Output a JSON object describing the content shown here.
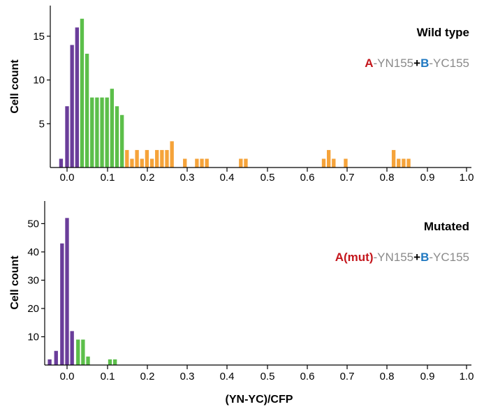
{
  "colors": {
    "low": "#6a3d9a",
    "mid": "#5cbf4a",
    "high": "#f5a33a",
    "accent_red": "#c4161c",
    "accent_blue": "#1f78c1",
    "label_gray": "#8a8a8a",
    "axis": "#000000"
  },
  "chart_data": [
    {
      "type": "bar",
      "title": "Wild type",
      "construct": [
        {
          "text": "A",
          "role": "red_bold"
        },
        {
          "text": "-YN155",
          "role": "gray"
        },
        {
          "text": "+",
          "role": "black_bold"
        },
        {
          "text": "B",
          "role": "blue_bold"
        },
        {
          "text": "-YC155",
          "role": "gray"
        }
      ],
      "xlabel": "",
      "ylabel": "Cell count",
      "xlim": [
        -0.05,
        1.0
      ],
      "ylim": [
        0,
        18.5
      ],
      "xticks": [
        "0.0",
        "0.1",
        "0.2",
        "0.3",
        "0.4",
        "0.5",
        "0.6",
        "0.7",
        "0.8",
        "0.9",
        "1.0"
      ],
      "yticks": [
        "5",
        "10",
        "15"
      ],
      "bin_width": 0.0125,
      "bins": [
        {
          "x": -0.015,
          "y": 1,
          "group": "low"
        },
        {
          "x": 0.0,
          "y": 7,
          "group": "low"
        },
        {
          "x": 0.0125,
          "y": 14,
          "group": "low"
        },
        {
          "x": 0.025,
          "y": 16,
          "group": "low"
        },
        {
          "x": 0.0375,
          "y": 17,
          "group": "mid"
        },
        {
          "x": 0.05,
          "y": 13,
          "group": "mid"
        },
        {
          "x": 0.0625,
          "y": 8,
          "group": "mid"
        },
        {
          "x": 0.075,
          "y": 8,
          "group": "mid"
        },
        {
          "x": 0.0875,
          "y": 8,
          "group": "mid"
        },
        {
          "x": 0.1,
          "y": 8,
          "group": "mid"
        },
        {
          "x": 0.1125,
          "y": 9,
          "group": "mid"
        },
        {
          "x": 0.125,
          "y": 7,
          "group": "mid"
        },
        {
          "x": 0.1375,
          "y": 6,
          "group": "mid"
        },
        {
          "x": 0.15,
          "y": 2,
          "group": "high"
        },
        {
          "x": 0.1625,
          "y": 1,
          "group": "high"
        },
        {
          "x": 0.175,
          "y": 2,
          "group": "high"
        },
        {
          "x": 0.1875,
          "y": 1,
          "group": "high"
        },
        {
          "x": 0.2,
          "y": 2,
          "group": "high"
        },
        {
          "x": 0.2125,
          "y": 1,
          "group": "high"
        },
        {
          "x": 0.225,
          "y": 2,
          "group": "high"
        },
        {
          "x": 0.2375,
          "y": 2,
          "group": "high"
        },
        {
          "x": 0.25,
          "y": 2,
          "group": "high"
        },
        {
          "x": 0.2625,
          "y": 3,
          "group": "high"
        },
        {
          "x": 0.295,
          "y": 1,
          "group": "high"
        },
        {
          "x": 0.325,
          "y": 1,
          "group": "high"
        },
        {
          "x": 0.3375,
          "y": 1,
          "group": "high"
        },
        {
          "x": 0.35,
          "y": 1,
          "group": "high"
        },
        {
          "x": 0.435,
          "y": 1,
          "group": "high"
        },
        {
          "x": 0.4475,
          "y": 1,
          "group": "high"
        },
        {
          "x": 0.6425,
          "y": 1,
          "group": "high"
        },
        {
          "x": 0.655,
          "y": 2,
          "group": "high"
        },
        {
          "x": 0.6675,
          "y": 1,
          "group": "high"
        },
        {
          "x": 0.6975,
          "y": 1,
          "group": "high"
        },
        {
          "x": 0.8175,
          "y": 2,
          "group": "high"
        },
        {
          "x": 0.83,
          "y": 1,
          "group": "high"
        },
        {
          "x": 0.8425,
          "y": 1,
          "group": "high"
        },
        {
          "x": 0.855,
          "y": 1,
          "group": "high"
        }
      ]
    },
    {
      "type": "bar",
      "title": "Mutated",
      "construct": [
        {
          "text": "A(mut)",
          "role": "red_bold"
        },
        {
          "text": "-YN155",
          "role": "gray"
        },
        {
          "text": "+",
          "role": "black_bold"
        },
        {
          "text": "B",
          "role": "blue_bold"
        },
        {
          "text": "-YC155",
          "role": "gray"
        }
      ],
      "xlabel": "(YN-YC)/CFP",
      "ylabel": "Cell count",
      "xlim": [
        -0.05,
        1.0
      ],
      "ylim": [
        0,
        58
      ],
      "xticks": [
        "0.0",
        "0.1",
        "0.2",
        "0.3",
        "0.4",
        "0.5",
        "0.6",
        "0.7",
        "0.8",
        "0.9",
        "1.0"
      ],
      "yticks": [
        "10",
        "20",
        "30",
        "40",
        "50"
      ],
      "bin_width": 0.0125,
      "bins": [
        {
          "x": -0.0435,
          "y": 2,
          "group": "low"
        },
        {
          "x": -0.0275,
          "y": 5,
          "group": "low"
        },
        {
          "x": -0.0125,
          "y": 43,
          "group": "low"
        },
        {
          "x": 0.0,
          "y": 52,
          "group": "low"
        },
        {
          "x": 0.0125,
          "y": 12,
          "group": "low"
        },
        {
          "x": 0.0275,
          "y": 9,
          "group": "mid"
        },
        {
          "x": 0.04,
          "y": 9,
          "group": "mid"
        },
        {
          "x": 0.0525,
          "y": 3,
          "group": "mid"
        },
        {
          "x": 0.1075,
          "y": 2,
          "group": "mid"
        },
        {
          "x": 0.12,
          "y": 2,
          "group": "mid"
        }
      ]
    }
  ]
}
